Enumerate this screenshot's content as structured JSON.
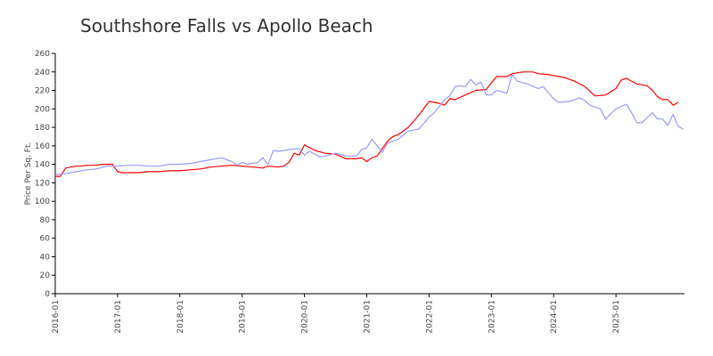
{
  "chart_data": {
    "type": "line",
    "title": "Southshore Falls vs Apollo Beach",
    "xlabel": "",
    "ylabel": "Price Per Sq. Ft.",
    "ylim": [
      0,
      260
    ],
    "yticks": [
      0,
      20,
      40,
      60,
      80,
      100,
      120,
      140,
      160,
      180,
      200,
      220,
      240,
      260
    ],
    "xticks": [
      "2016-01",
      "2017-01",
      "2018-01",
      "2019-01",
      "2020-01",
      "2021-01",
      "2022-01",
      "2023-01",
      "2024-01",
      "2025-01"
    ],
    "grid": false,
    "legend": "none",
    "series": [
      {
        "color": "#ff0000",
        "points": [
          [
            "2016-01",
            127
          ],
          [
            "2016-02",
            127
          ],
          [
            "2016-03",
            136
          ],
          [
            "2016-04",
            137
          ],
          [
            "2016-05",
            138
          ],
          [
            "2016-06",
            138
          ],
          [
            "2016-07",
            139
          ],
          [
            "2016-08",
            139
          ],
          [
            "2016-09",
            139
          ],
          [
            "2016-10",
            140
          ],
          [
            "2016-11",
            140
          ],
          [
            "2016-12",
            140
          ],
          [
            "2017-01",
            132
          ],
          [
            "2017-02",
            131
          ],
          [
            "2017-03",
            131
          ],
          [
            "2017-05",
            131
          ],
          [
            "2017-07",
            132
          ],
          [
            "2017-09",
            132
          ],
          [
            "2017-11",
            133
          ],
          [
            "2018-01",
            133
          ],
          [
            "2018-03",
            134
          ],
          [
            "2018-05",
            135
          ],
          [
            "2018-07",
            137
          ],
          [
            "2018-09",
            138
          ],
          [
            "2018-11",
            139
          ],
          [
            "2019-01",
            138
          ],
          [
            "2019-03",
            137
          ],
          [
            "2019-05",
            136
          ],
          [
            "2019-06",
            138
          ],
          [
            "2019-08",
            137
          ],
          [
            "2019-09",
            138
          ],
          [
            "2019-10",
            142
          ],
          [
            "2019-11",
            152
          ],
          [
            "2019-12",
            150
          ],
          [
            "2020-01",
            161
          ],
          [
            "2020-02",
            158
          ],
          [
            "2020-03",
            155
          ],
          [
            "2020-05",
            152
          ],
          [
            "2020-07",
            151
          ],
          [
            "2020-09",
            146
          ],
          [
            "2020-11",
            146
          ],
          [
            "2020-12",
            147
          ],
          [
            "2021-01",
            143
          ],
          [
            "2021-02",
            147
          ],
          [
            "2021-03",
            149
          ],
          [
            "2021-04",
            157
          ],
          [
            "2021-05",
            165
          ],
          [
            "2021-06",
            170
          ],
          [
            "2021-07",
            172
          ],
          [
            "2021-09",
            180
          ],
          [
            "2021-11",
            193
          ],
          [
            "2022-01",
            208
          ],
          [
            "2022-03",
            206
          ],
          [
            "2022-04",
            204
          ],
          [
            "2022-05",
            211
          ],
          [
            "2022-06",
            210
          ],
          [
            "2022-08",
            215
          ],
          [
            "2022-10",
            220
          ],
          [
            "2022-12",
            221
          ],
          [
            "2023-02",
            235
          ],
          [
            "2023-04",
            235
          ],
          [
            "2023-05",
            238
          ],
          [
            "2023-07",
            240
          ],
          [
            "2023-09",
            240
          ],
          [
            "2023-10",
            238
          ],
          [
            "2023-12",
            237
          ],
          [
            "2024-02",
            235
          ],
          [
            "2024-03",
            234
          ],
          [
            "2024-05",
            230
          ],
          [
            "2024-07",
            224
          ],
          [
            "2024-09",
            214
          ],
          [
            "2024-11",
            215
          ],
          [
            "2025-01",
            222
          ],
          [
            "2025-02",
            231
          ],
          [
            "2025-03",
            233
          ],
          [
            "2025-05",
            227
          ],
          [
            "2025-07",
            225
          ],
          [
            "2025-08",
            220
          ],
          [
            "2025-09",
            213
          ],
          [
            "2025-10",
            210
          ],
          [
            "2025-11",
            210
          ],
          [
            "2025-12",
            204
          ],
          [
            "2026-01",
            207
          ]
        ]
      },
      {
        "color": "#9999ff",
        "points": [
          [
            "2016-01",
            129
          ],
          [
            "2016-03",
            130
          ],
          [
            "2016-05",
            132
          ],
          [
            "2016-07",
            134
          ],
          [
            "2016-09",
            135
          ],
          [
            "2016-11",
            138
          ],
          [
            "2016-12",
            138
          ],
          [
            "2017-01",
            138
          ],
          [
            "2017-03",
            139
          ],
          [
            "2017-05",
            139
          ],
          [
            "2017-07",
            138
          ],
          [
            "2017-09",
            138
          ],
          [
            "2017-11",
            140
          ],
          [
            "2018-01",
            140
          ],
          [
            "2018-03",
            141
          ],
          [
            "2018-05",
            143
          ],
          [
            "2018-07",
            145
          ],
          [
            "2018-09",
            147
          ],
          [
            "2018-11",
            143
          ],
          [
            "2018-12",
            139
          ],
          [
            "2019-01",
            142
          ],
          [
            "2019-02",
            140
          ],
          [
            "2019-04",
            142
          ],
          [
            "2019-05",
            147
          ],
          [
            "2019-06",
            140
          ],
          [
            "2019-07",
            155
          ],
          [
            "2019-08",
            154
          ],
          [
            "2019-10",
            156
          ],
          [
            "2019-12",
            157
          ],
          [
            "2020-01",
            150
          ],
          [
            "2020-02",
            154
          ],
          [
            "2020-04",
            148
          ],
          [
            "2020-05",
            149
          ],
          [
            "2020-07",
            152
          ],
          [
            "2020-09",
            149
          ],
          [
            "2020-11",
            149
          ],
          [
            "2020-12",
            156
          ],
          [
            "2021-01",
            158
          ],
          [
            "2021-02",
            167
          ],
          [
            "2021-03",
            160
          ],
          [
            "2021-04",
            153
          ],
          [
            "2021-05",
            163
          ],
          [
            "2021-07",
            167
          ],
          [
            "2021-09",
            176
          ],
          [
            "2021-11",
            178
          ],
          [
            "2022-01",
            191
          ],
          [
            "2022-02",
            196
          ],
          [
            "2022-04",
            210
          ],
          [
            "2022-05",
            214
          ],
          [
            "2022-06",
            224
          ],
          [
            "2022-07",
            225
          ],
          [
            "2022-08",
            224
          ],
          [
            "2022-09",
            232
          ],
          [
            "2022-10",
            226
          ],
          [
            "2022-11",
            229
          ],
          [
            "2022-12",
            215
          ],
          [
            "2023-01",
            215
          ],
          [
            "2023-02",
            220
          ],
          [
            "2023-04",
            217
          ],
          [
            "2023-05",
            237
          ],
          [
            "2023-06",
            230
          ],
          [
            "2023-08",
            227
          ],
          [
            "2023-10",
            222
          ],
          [
            "2023-11",
            224
          ],
          [
            "2024-01",
            211
          ],
          [
            "2024-02",
            207
          ],
          [
            "2024-04",
            208
          ],
          [
            "2024-06",
            212
          ],
          [
            "2024-07",
            209
          ],
          [
            "2024-08",
            204
          ],
          [
            "2024-10",
            200
          ],
          [
            "2024-11",
            189
          ],
          [
            "2025-01",
            200
          ],
          [
            "2025-03",
            205
          ],
          [
            "2025-04",
            196
          ],
          [
            "2025-05",
            185
          ],
          [
            "2025-06",
            185
          ],
          [
            "2025-08",
            196
          ],
          [
            "2025-09",
            189
          ],
          [
            "2025-10",
            189
          ],
          [
            "2025-11",
            182
          ],
          [
            "2025-12",
            194
          ],
          [
            "2026-01",
            181
          ],
          [
            "2026-02",
            178
          ]
        ]
      }
    ]
  }
}
